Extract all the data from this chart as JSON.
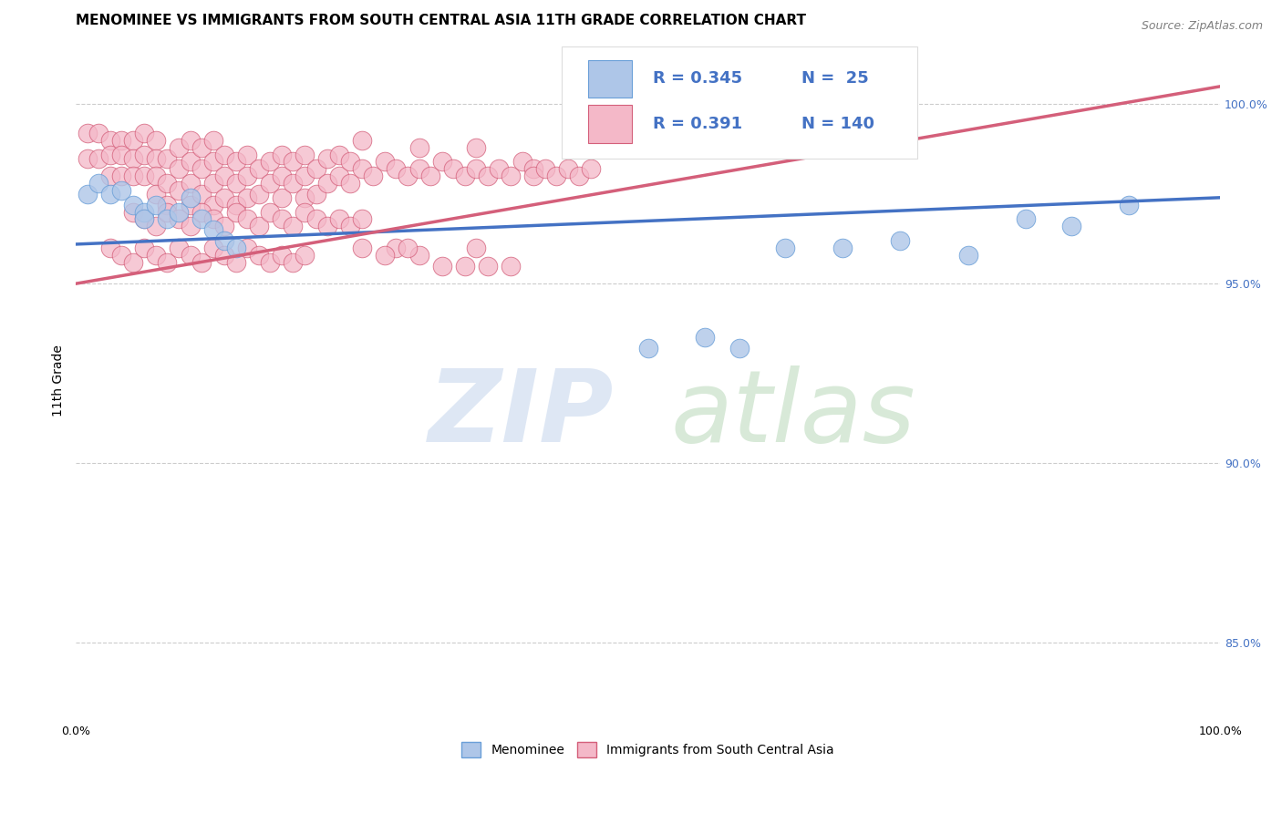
{
  "title": "MENOMINEE VS IMMIGRANTS FROM SOUTH CENTRAL ASIA 11TH GRADE CORRELATION CHART",
  "source_text": "Source: ZipAtlas.com",
  "ylabel": "11th Grade",
  "xlabel": "",
  "xlim": [
    0.0,
    1.0
  ],
  "ylim": [
    0.828,
    1.018
  ],
  "yticks": [
    0.85,
    0.9,
    0.95,
    1.0
  ],
  "ytick_labels": [
    "85.0%",
    "90.0%",
    "95.0%",
    "100.0%"
  ],
  "xticks": [
    0.0,
    0.25,
    0.5,
    0.75,
    1.0
  ],
  "xtick_labels": [
    "0.0%",
    "",
    "",
    "",
    "100.0%"
  ],
  "legend_entries": [
    {
      "label": "Menominee",
      "color": "#aec6e8"
    },
    {
      "label": "Immigrants from South Central Asia",
      "color": "#f4a7b9"
    }
  ],
  "r_blue": 0.345,
  "n_blue": 25,
  "r_pink": 0.391,
  "n_pink": 140,
  "blue_scatter": {
    "x": [
      0.01,
      0.02,
      0.03,
      0.04,
      0.05,
      0.06,
      0.06,
      0.07,
      0.08,
      0.09,
      0.1,
      0.11,
      0.12,
      0.13,
      0.14,
      0.5,
      0.55,
      0.58,
      0.62,
      0.67,
      0.72,
      0.78,
      0.83,
      0.87,
      0.92
    ],
    "y": [
      0.975,
      0.978,
      0.975,
      0.976,
      0.972,
      0.97,
      0.968,
      0.972,
      0.968,
      0.97,
      0.974,
      0.968,
      0.965,
      0.962,
      0.96,
      0.932,
      0.935,
      0.932,
      0.96,
      0.96,
      0.962,
      0.958,
      0.968,
      0.966,
      0.972
    ]
  },
  "pink_scatter": {
    "x": [
      0.01,
      0.01,
      0.02,
      0.02,
      0.03,
      0.03,
      0.03,
      0.04,
      0.04,
      0.04,
      0.05,
      0.05,
      0.05,
      0.06,
      0.06,
      0.06,
      0.07,
      0.07,
      0.07,
      0.07,
      0.08,
      0.08,
      0.08,
      0.09,
      0.09,
      0.09,
      0.1,
      0.1,
      0.1,
      0.1,
      0.11,
      0.11,
      0.11,
      0.12,
      0.12,
      0.12,
      0.12,
      0.13,
      0.13,
      0.13,
      0.14,
      0.14,
      0.14,
      0.15,
      0.15,
      0.15,
      0.16,
      0.16,
      0.17,
      0.17,
      0.18,
      0.18,
      0.18,
      0.19,
      0.19,
      0.2,
      0.2,
      0.2,
      0.21,
      0.21,
      0.22,
      0.22,
      0.23,
      0.23,
      0.24,
      0.24,
      0.25,
      0.25,
      0.26,
      0.27,
      0.28,
      0.29,
      0.3,
      0.3,
      0.31,
      0.32,
      0.33,
      0.34,
      0.35,
      0.35,
      0.36,
      0.37,
      0.38,
      0.39,
      0.4,
      0.4,
      0.41,
      0.42,
      0.43,
      0.44,
      0.45,
      0.05,
      0.06,
      0.07,
      0.08,
      0.09,
      0.1,
      0.11,
      0.12,
      0.13,
      0.14,
      0.15,
      0.16,
      0.17,
      0.18,
      0.19,
      0.2,
      0.21,
      0.22,
      0.23,
      0.24,
      0.25,
      0.03,
      0.04,
      0.05,
      0.06,
      0.07,
      0.08,
      0.09,
      0.1,
      0.11,
      0.12,
      0.13,
      0.14,
      0.15,
      0.16,
      0.17,
      0.18,
      0.19,
      0.2,
      0.28,
      0.3,
      0.32,
      0.34,
      0.36,
      0.38,
      0.25,
      0.27,
      0.29,
      0.35
    ],
    "y": [
      0.985,
      0.992,
      0.985,
      0.992,
      0.99,
      0.986,
      0.98,
      0.99,
      0.986,
      0.98,
      0.99,
      0.985,
      0.98,
      0.992,
      0.986,
      0.98,
      0.99,
      0.985,
      0.98,
      0.975,
      0.985,
      0.978,
      0.972,
      0.988,
      0.982,
      0.976,
      0.99,
      0.984,
      0.978,
      0.972,
      0.988,
      0.982,
      0.975,
      0.99,
      0.984,
      0.978,
      0.972,
      0.986,
      0.98,
      0.974,
      0.984,
      0.978,
      0.972,
      0.986,
      0.98,
      0.974,
      0.982,
      0.975,
      0.984,
      0.978,
      0.986,
      0.98,
      0.974,
      0.984,
      0.978,
      0.986,
      0.98,
      0.974,
      0.982,
      0.975,
      0.985,
      0.978,
      0.986,
      0.98,
      0.984,
      0.978,
      0.99,
      0.982,
      0.98,
      0.984,
      0.982,
      0.98,
      0.988,
      0.982,
      0.98,
      0.984,
      0.982,
      0.98,
      0.988,
      0.982,
      0.98,
      0.982,
      0.98,
      0.984,
      0.982,
      0.98,
      0.982,
      0.98,
      0.982,
      0.98,
      0.982,
      0.97,
      0.968,
      0.966,
      0.97,
      0.968,
      0.966,
      0.97,
      0.968,
      0.966,
      0.97,
      0.968,
      0.966,
      0.97,
      0.968,
      0.966,
      0.97,
      0.968,
      0.966,
      0.968,
      0.966,
      0.968,
      0.96,
      0.958,
      0.956,
      0.96,
      0.958,
      0.956,
      0.96,
      0.958,
      0.956,
      0.96,
      0.958,
      0.956,
      0.96,
      0.958,
      0.956,
      0.958,
      0.956,
      0.958,
      0.96,
      0.958,
      0.955,
      0.955,
      0.955,
      0.955,
      0.96,
      0.958,
      0.96,
      0.96
    ]
  },
  "blue_line_x": [
    0.0,
    1.0
  ],
  "blue_line_y": [
    0.961,
    0.974
  ],
  "pink_line_x": [
    0.0,
    1.0
  ],
  "pink_line_y": [
    0.95,
    1.005
  ],
  "blue_line_color": "#4472c4",
  "pink_line_color": "#d45f7a",
  "scatter_blue_color": "#aec6e8",
  "scatter_pink_color": "#f4b8c8",
  "grid_color": "#cccccc",
  "background_color": "#ffffff",
  "title_fontsize": 11,
  "axis_label_fontsize": 10,
  "tick_fontsize": 9,
  "legend_fontsize": 13
}
